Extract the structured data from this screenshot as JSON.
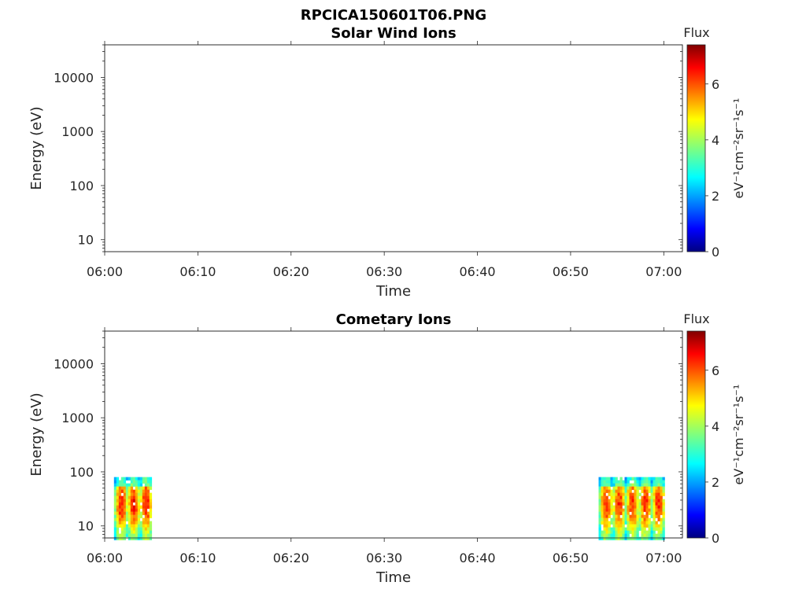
{
  "figure": {
    "title": "RPCICA150601T06.PNG"
  },
  "chart_data": [
    {
      "type": "heatmap",
      "title": "Solar Wind Ions",
      "xlabel": "Time",
      "ylabel": "Energy (eV)",
      "xlim": [
        "06:00",
        "07:02"
      ],
      "x_ticks": [
        "06:00",
        "06:10",
        "06:20",
        "06:30",
        "06:40",
        "06:50",
        "07:00"
      ],
      "y_scale": "log",
      "ylim": [
        6,
        40000
      ],
      "y_ticks": [
        "10",
        "100",
        "1000",
        "10000"
      ],
      "colorbar": {
        "label": "Flux",
        "units": "eV⁻¹cm⁻²sr⁻¹s⁻¹",
        "range": [
          0,
          7.4
        ],
        "ticks": [
          "0",
          "2",
          "4",
          "6"
        ],
        "colormap": "jet"
      },
      "blocks": []
    },
    {
      "type": "heatmap",
      "title": "Cometary Ions",
      "xlabel": "Time",
      "ylabel": "Energy (eV)",
      "xlim": [
        "06:00",
        "07:02"
      ],
      "x_ticks": [
        "06:00",
        "06:10",
        "06:20",
        "06:30",
        "06:40",
        "06:50",
        "07:00"
      ],
      "y_scale": "log",
      "ylim": [
        6,
        40000
      ],
      "y_ticks": [
        "10",
        "100",
        "1000",
        "10000"
      ],
      "colorbar": {
        "label": "Flux",
        "units": "eV⁻¹cm⁻²sr⁻¹s⁻¹",
        "range": [
          0,
          7.4
        ],
        "ticks": [
          "0",
          "2",
          "4",
          "6"
        ],
        "colormap": "jet"
      },
      "blocks": [
        {
          "t_start": "06:01",
          "t_end": "06:05",
          "e_min": 6,
          "e_max": 80,
          "peak_flux": 7.2
        },
        {
          "t_start": "06:53",
          "t_end": "07:00",
          "e_min": 6,
          "e_max": 80,
          "peak_flux": 7.0
        }
      ]
    }
  ]
}
